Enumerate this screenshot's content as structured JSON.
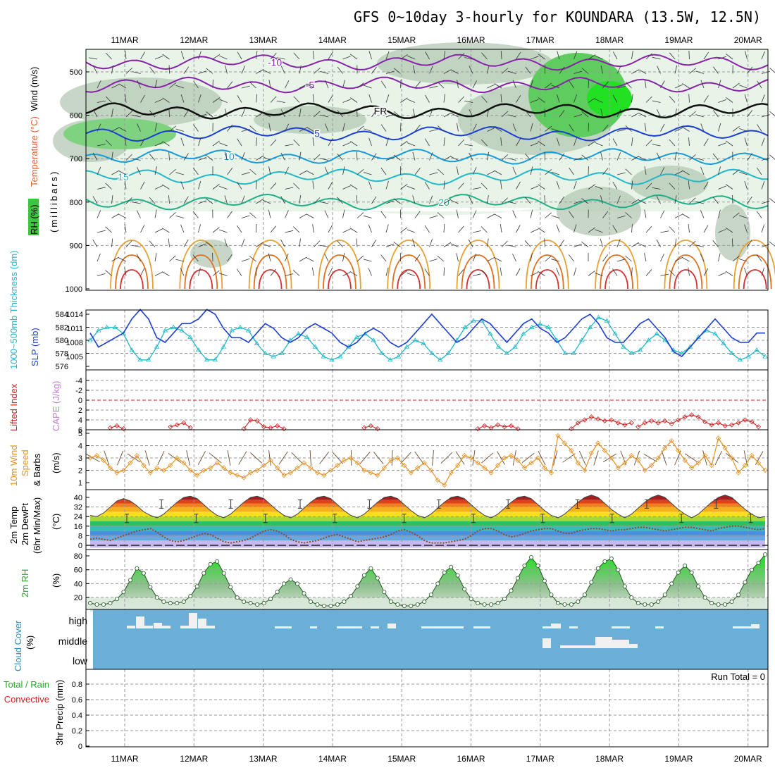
{
  "chart_data": {
    "type": "meteogram",
    "title": "GFS 0~10day 3-hourly for KOUNDARA (13.5W, 12.5N)",
    "days": [
      "11MAR",
      "12MAR",
      "13MAR",
      "14MAR",
      "15MAR",
      "16MAR",
      "17MAR",
      "18MAR",
      "19MAR",
      "20MAR"
    ],
    "colors": {
      "rh_green": "#3cc63c",
      "slp": "#1c3fd0",
      "thick": "#22b8c8",
      "li": "#d02020",
      "wind10": "#e89020",
      "rh2m": "#22aa22",
      "cloud": "#6baed6"
    },
    "panels": [
      {
        "name": "vertical-profile",
        "labels": {
          "wind": "Wind (m/s)",
          "temperature": "Temperature (°C)",
          "rh": "RH (%)",
          "mb": "(millibars)"
        },
        "pressure_ticks": [
          "500",
          "600",
          "700",
          "800",
          "900",
          "1000"
        ],
        "temperature_levels": [
          {
            "label": "-10",
            "p": 478,
            "color": "#8822aa"
          },
          {
            "label": "-5",
            "p": 530,
            "color": "#8822aa"
          },
          {
            "label": "FR",
            "p": 590,
            "color": "#111111"
          },
          {
            "label": "5",
            "p": 642,
            "color": "#1c3fd0"
          },
          {
            "label": "10",
            "p": 695,
            "color": "#1a9ad8"
          },
          {
            "label": "15",
            "p": 742,
            "color": "#22b8c8"
          },
          {
            "label": "20",
            "p": 800,
            "color": "#1fb089"
          }
        ],
        "rh_contour_labels": [
          "30",
          "50",
          "70"
        ]
      },
      {
        "name": "slp-thickness",
        "labels": {
          "thickness": "1000~500mb Thickness (dm)",
          "slp": "SLP (mb)"
        },
        "left_ticks": [
          "576",
          "578",
          "580",
          "582",
          "584"
        ],
        "right_ticks": [
          "1005",
          "1008",
          "1011",
          "1014"
        ],
        "slp": [
          1010,
          1007,
          1008,
          1009,
          1010,
          1013,
          1015,
          1013,
          1009,
          1008,
          1010,
          1012,
          1012,
          1013,
          1015,
          1014,
          1011,
          1009,
          1009,
          1008,
          1010,
          1012,
          1011,
          1009,
          1008,
          1009,
          1011,
          1012,
          1011,
          1010,
          1008,
          1007,
          1008,
          1010,
          1011,
          1010,
          1008,
          1007,
          1008,
          1010,
          1012,
          1014,
          1012,
          1010,
          1008,
          1009,
          1011,
          1013,
          1012,
          1010,
          1008,
          1010,
          1012,
          1013,
          1011,
          1010,
          1008,
          1009,
          1011,
          1013,
          1014,
          1012,
          1009,
          1008,
          1008,
          1010,
          1012,
          1013,
          1011,
          1009,
          1006,
          1005,
          1007,
          1009,
          1011,
          1013,
          1011,
          1009,
          1008,
          1008,
          1010,
          1010
        ],
        "thickness": [
          580,
          581.5,
          582,
          582,
          581,
          578.5,
          577,
          577,
          579,
          581.5,
          582,
          581.5,
          580.5,
          578.5,
          577,
          577,
          579,
          581.5,
          582,
          581.5,
          579.5,
          578,
          577.5,
          578,
          580,
          581,
          580.5,
          579,
          577.5,
          577,
          577.5,
          579,
          580.5,
          581,
          580,
          578,
          577,
          577.5,
          579,
          580,
          579.5,
          578,
          577,
          578,
          580,
          582,
          583,
          583,
          581,
          579,
          578,
          579,
          581,
          582,
          582.5,
          582,
          580,
          578,
          578,
          580,
          582,
          583.5,
          583,
          581,
          579,
          578,
          578.5,
          580,
          581,
          580,
          578.5,
          578,
          579,
          580.5,
          581.5,
          581,
          579.5,
          578,
          577,
          577.5,
          578.5,
          577.5
        ]
      },
      {
        "name": "lifted-index",
        "labels": {
          "li": "Lifted Index",
          "cape": "CAPE (J/kg)"
        },
        "ticks": [
          "-4",
          "-2",
          "0",
          "2",
          "4",
          "6"
        ],
        "segments": [
          [
            [
              3,
              5.6
            ],
            [
              4,
              5.2
            ],
            [
              5,
              5.8
            ]
          ],
          [
            [
              12,
              5.4
            ],
            [
              13,
              5.0
            ],
            [
              14,
              4.6
            ],
            [
              15,
              5.6
            ]
          ],
          [
            [
              23,
              5.8
            ],
            [
              24,
              4.0
            ],
            [
              25,
              4.2
            ],
            [
              26,
              5.4
            ],
            [
              27,
              5.6
            ],
            [
              28,
              5.2
            ],
            [
              29,
              5.8
            ]
          ],
          [
            [
              41,
              5.6
            ],
            [
              42,
              5.2
            ],
            [
              43,
              5.8
            ]
          ],
          [
            [
              58,
              5.8
            ],
            [
              59,
              5.2
            ],
            [
              60,
              5.6
            ],
            [
              61,
              5.0
            ],
            [
              62,
              5.4
            ],
            [
              63,
              5.2
            ],
            [
              64,
              5.8
            ]
          ],
          [
            [
              72,
              5.8
            ],
            [
              73,
              4.6
            ],
            [
              74,
              4.0
            ],
            [
              75,
              3.4
            ],
            [
              76,
              3.8
            ],
            [
              77,
              4.2
            ],
            [
              78,
              4.0
            ],
            [
              79,
              4.6
            ],
            [
              80,
              5.0
            ],
            [
              81,
              4.6
            ]
          ],
          [
            [
              82,
              5.4
            ],
            [
              83,
              4.6
            ],
            [
              84,
              4.2
            ],
            [
              85,
              4.6
            ],
            [
              86,
              4.2
            ],
            [
              87,
              4.8
            ],
            [
              88,
              4.0
            ],
            [
              89,
              3.4
            ],
            [
              90,
              3.0
            ],
            [
              91,
              3.4
            ],
            [
              92,
              4.4
            ],
            [
              93,
              5.0
            ],
            [
              94,
              4.6
            ],
            [
              95,
              5.2
            ],
            [
              96,
              5.0
            ],
            [
              97,
              4.6
            ],
            [
              98,
              4.0
            ],
            [
              99,
              4.4
            ],
            [
              100,
              5.4
            ]
          ]
        ]
      },
      {
        "name": "wind-10m",
        "labels": {
          "wind": "10m Wind",
          "speed": "Speed",
          "barbs": "& Barbs",
          "unit": "(m/s)"
        },
        "ticks": [
          "1",
          "2",
          "3",
          "4",
          "5"
        ],
        "speed": [
          3.0,
          3.2,
          2.8,
          2.2,
          1.8,
          2.0,
          2.6,
          3.2,
          2.4,
          1.8,
          2.2,
          2.0,
          2.4,
          3.0,
          2.6,
          2.0,
          1.6,
          2.0,
          2.2,
          2.6,
          2.2,
          1.8,
          1.6,
          1.4,
          1.8,
          2.0,
          2.4,
          2.8,
          2.2,
          1.6,
          1.8,
          2.2,
          2.6,
          2.2,
          1.8,
          1.6,
          2.0,
          2.4,
          2.8,
          3.0,
          2.6,
          2.0,
          1.8,
          1.6,
          2.2,
          2.8,
          3.0,
          2.4,
          1.8,
          2.2,
          2.6,
          2.0,
          1.2,
          0.8,
          1.8,
          2.4,
          3.2,
          3.0,
          2.6,
          2.2,
          1.8,
          2.4,
          3.0,
          3.2,
          2.8,
          2.2,
          2.6,
          3.0,
          2.2,
          1.8,
          4.8,
          4.2,
          3.6,
          2.6,
          2.0,
          3.4,
          4.2,
          3.6,
          3.0,
          2.2,
          2.6,
          3.2,
          2.8,
          2.0,
          2.4,
          3.0,
          3.8,
          4.4,
          3.6,
          2.8,
          2.2,
          2.6,
          3.2,
          2.4,
          4.6,
          3.8,
          3.0,
          1.8,
          2.4,
          3.2,
          2.6,
          2.0
        ]
      },
      {
        "name": "temp-2m",
        "labels": {
          "temp": "2m Temp",
          "dewpt": "2m DewPt",
          "minmax": "(6hr Min/Max)",
          "unit": "(°C)"
        },
        "ticks": [
          "0",
          "8",
          "16",
          "24",
          "32",
          "40"
        ],
        "temp": [
          25,
          24,
          27,
          32,
          37,
          39,
          37,
          33,
          28,
          25,
          23,
          26,
          31,
          36,
          40,
          41,
          39,
          34,
          29,
          25,
          23,
          26,
          31,
          36,
          40,
          41,
          39,
          34,
          29,
          25,
          23,
          26,
          31,
          36,
          40,
          41,
          39,
          34,
          29,
          25,
          23,
          26,
          31,
          36,
          40,
          41,
          39,
          34,
          29,
          25,
          23,
          26,
          31,
          36,
          40,
          41,
          39,
          34,
          29,
          25,
          23,
          26,
          31,
          36,
          40,
          41,
          39,
          34,
          29,
          25,
          23,
          26,
          31,
          36,
          40,
          42,
          40,
          35,
          30,
          26,
          23,
          26,
          31,
          36,
          40,
          42,
          40,
          35,
          30,
          26,
          23,
          26,
          31,
          36,
          40,
          42,
          40,
          35,
          30,
          26,
          23,
          24
        ],
        "dewpt": [
          5,
          6,
          5,
          4,
          6,
          8,
          10,
          12,
          13,
          14,
          11,
          7,
          4,
          3,
          4,
          6,
          8,
          10,
          9,
          6,
          3,
          2,
          3,
          4,
          6,
          9,
          12,
          13,
          12,
          9,
          5,
          3,
          2,
          3,
          4,
          6,
          8,
          9,
          7,
          5,
          3,
          4,
          5,
          6,
          7,
          9,
          12,
          13,
          11,
          8,
          4,
          2,
          2,
          2,
          3,
          4,
          5,
          8,
          12,
          14,
          14,
          12,
          9,
          7,
          8,
          10,
          12,
          13,
          14,
          14,
          12,
          10,
          10,
          12,
          13,
          14,
          14,
          13,
          12,
          13,
          13,
          14,
          15,
          15,
          14,
          13,
          12,
          13,
          14,
          15,
          15,
          14,
          13,
          12,
          14,
          15,
          16,
          16,
          15,
          14,
          13,
          14
        ]
      },
      {
        "name": "rh-2m",
        "labels": {
          "rh": "2m RH",
          "unit": "(%)"
        },
        "ticks": [
          "20",
          "40",
          "60",
          "80"
        ],
        "rh": [
          12,
          10,
          10,
          12,
          18,
          28,
          45,
          62,
          55,
          35,
          20,
          14,
          12,
          12,
          14,
          22,
          36,
          55,
          68,
          72,
          55,
          35,
          20,
          14,
          12,
          10,
          12,
          18,
          28,
          40,
          46,
          40,
          26,
          14,
          10,
          8,
          8,
          10,
          14,
          22,
          36,
          52,
          62,
          48,
          28,
          14,
          10,
          8,
          8,
          10,
          14,
          24,
          40,
          56,
          64,
          52,
          32,
          18,
          12,
          10,
          10,
          12,
          18,
          30,
          48,
          66,
          78,
          66,
          44,
          24,
          12,
          10,
          10,
          14,
          24,
          42,
          62,
          72,
          76,
          60,
          36,
          20,
          12,
          10,
          10,
          14,
          24,
          40,
          56,
          66,
          56,
          36,
          20,
          12,
          10,
          10,
          14,
          24,
          42,
          60,
          70,
          82
        ]
      },
      {
        "name": "cloud-cover",
        "labels": {
          "cloud": "Cloud Cover",
          "unit": "(%)",
          "high": "high",
          "middle": "middle",
          "low": "low"
        }
      },
      {
        "name": "precip-3hr",
        "labels": {
          "precip": "3hr Precip (mm)",
          "total": "Total / Rain",
          "convective": "Convective",
          "run_total": "Run Total = 0"
        },
        "ticks": [
          "0",
          "0.2",
          "0.4",
          "0.6",
          "0.8"
        ]
      }
    ]
  }
}
